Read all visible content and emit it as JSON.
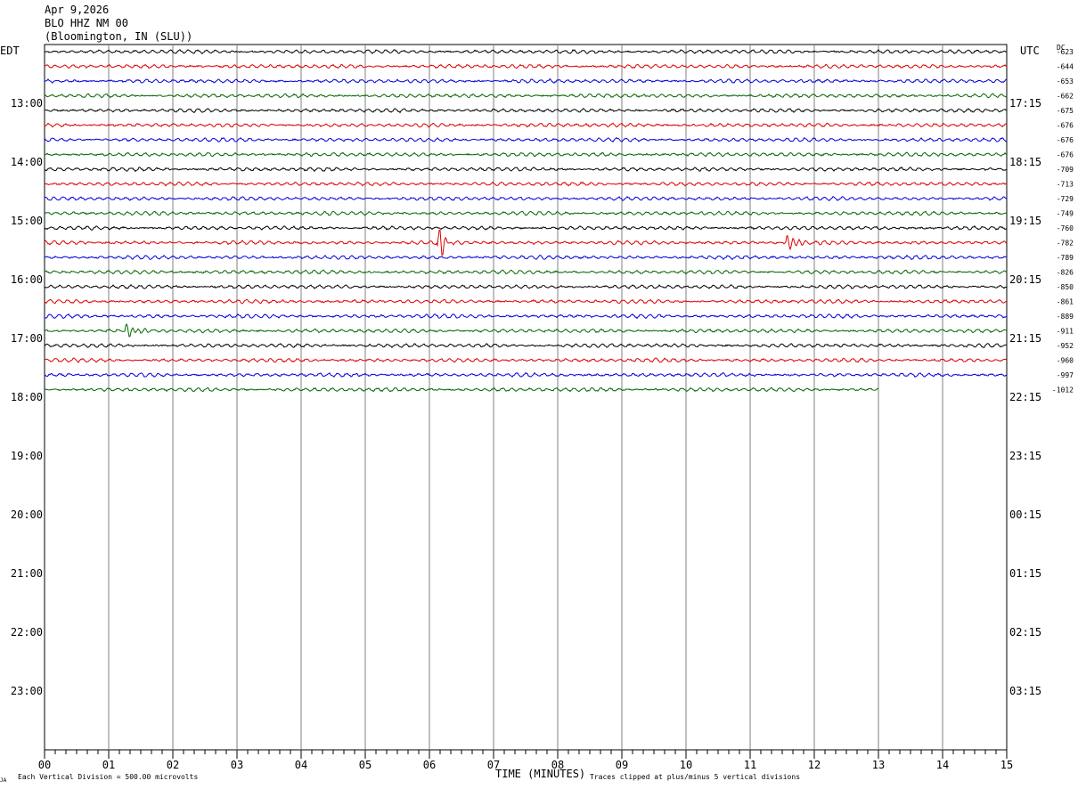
{
  "header": {
    "date": "Apr 9,2026",
    "station": "BLO HHZ NM 00",
    "location": "(Bloomington, IN (SLU))"
  },
  "left_axis_title": "EDT",
  "right_axis_title": "UTC",
  "dc_label": "DC",
  "xlabel": "TIME (MINUTES)",
  "footer_left": "Each Vertical Division =  500.00 microvolts",
  "footer_right": "Traces clipped at plus/minus 5 vertical divisions",
  "corner_mark": "JA",
  "colors": {
    "trace": [
      "#000000",
      "#dd0000",
      "#0000dd",
      "#006600"
    ],
    "grid": "#808080"
  },
  "chart_data": {
    "type": "line",
    "title": "Apr 9,2026 BLO HHZ NM 00 (Bloomington, IN (SLU))",
    "xlabel": "TIME (MINUTES)",
    "ylabel": "",
    "xlim": [
      0,
      15
    ],
    "x_ticks": [
      "00",
      "01",
      "02",
      "03",
      "04",
      "05",
      "06",
      "07",
      "08",
      "09",
      "10",
      "11",
      "12",
      "13",
      "14",
      "15"
    ],
    "left_hour_labels": [
      "13:00",
      "14:00",
      "15:00",
      "16:00",
      "17:00",
      "18:00",
      "19:00",
      "20:00",
      "21:00",
      "22:00",
      "23:00"
    ],
    "right_hour_labels": [
      "17:15",
      "18:15",
      "19:15",
      "20:15",
      "21:15",
      "22:15",
      "23:15",
      "00:15",
      "01:15",
      "02:15",
      "03:15"
    ],
    "dc_offsets": [
      "-623",
      "-644",
      "-653",
      "-662",
      "-675",
      "-676",
      "-676",
      "-676",
      "-709",
      "-713",
      "-729",
      "-749",
      "-760",
      "-782",
      "-789",
      "-826",
      "-850",
      "-861",
      "-889",
      "-911",
      "-952",
      "-960",
      "-997",
      "-1012"
    ],
    "trace_count": 24,
    "trace_minutes": 15,
    "last_trace_minutes": 13,
    "events": [
      {
        "trace": 13,
        "minute": 6.18,
        "amplitude": 2.6
      },
      {
        "trace": 13,
        "minute": 11.6,
        "amplitude": 1.2
      },
      {
        "trace": 19,
        "minute": 1.3,
        "amplitude": 0.9
      }
    ],
    "grid": true
  }
}
